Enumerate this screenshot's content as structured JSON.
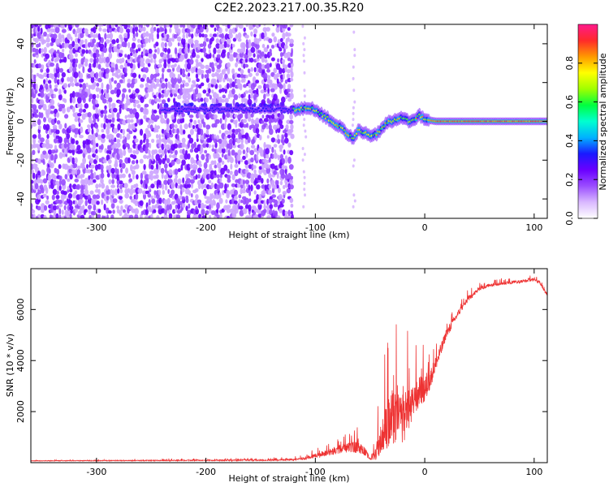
{
  "chart_data": [
    {
      "type": "heatmap",
      "title": "C2E2.2023.217.00.35.R20",
      "xlabel": "Height of straight line (km)",
      "ylabel": "Frequency (Hz)",
      "xlim": [
        -360,
        112
      ],
      "ylim": [
        -50,
        50
      ],
      "x_ticks": [
        -300,
        -200,
        -100,
        0,
        100
      ],
      "y_ticks": [
        -40,
        -20,
        0,
        20,
        40
      ],
      "colorbar": {
        "label": "Normalized spectral amplitude",
        "ticks": [
          0.0,
          0.2,
          0.4,
          0.6,
          0.8
        ],
        "tick_labels": [
          "0.0",
          "0.2",
          "0.4",
          "0.6",
          "0.8"
        ],
        "range": [
          0,
          1
        ],
        "colors": [
          "#ffffff",
          "#d9b8ff",
          "#9a4dff",
          "#6a00ff",
          "#1a1aff",
          "#00b2ff",
          "#00ffd0",
          "#00ff40",
          "#a0ff00",
          "#ffff00",
          "#ff9900",
          "#ff2a2a",
          "#ff1a8c"
        ]
      },
      "ridge": {
        "x": [
          -140,
          -120,
          -110,
          -100,
          -95,
          -90,
          -85,
          -80,
          -75,
          -70,
          -65,
          -60,
          -55,
          -50,
          -45,
          -40,
          -35,
          -30,
          -25,
          -20,
          -15,
          -10,
          -5,
          0,
          10,
          40,
          80,
          112
        ],
        "freq": [
          6,
          6,
          7,
          6,
          4,
          2,
          0,
          -2,
          -4,
          -7,
          -9,
          -4,
          -6,
          -8,
          -7,
          -4,
          -1,
          0,
          1,
          2,
          0,
          1,
          3,
          1,
          0,
          0,
          0,
          0
        ]
      }
    },
    {
      "type": "line",
      "xlabel": "Height of straight line (km)",
      "ylabel": "SNR (10 * v/v)",
      "xlim": [
        -360,
        112
      ],
      "ylim": [
        0,
        7600
      ],
      "x_ticks": [
        -300,
        -200,
        -100,
        0,
        100
      ],
      "y_ticks": [
        2000,
        4000,
        6000
      ],
      "color": "#ee3333",
      "envelope": {
        "x": [
          -360,
          -250,
          -150,
          -120,
          -110,
          -100,
          -90,
          -80,
          -70,
          -60,
          -55,
          -50,
          -45,
          -40,
          -35,
          -30,
          -25,
          -20,
          -15,
          -10,
          -5,
          0,
          5,
          10,
          15,
          20,
          30,
          40,
          50,
          60,
          70,
          80,
          90,
          100,
          105,
          110,
          112
        ],
        "baseline": [
          70,
          80,
          90,
          110,
          150,
          250,
          350,
          450,
          550,
          550,
          400,
          150,
          300,
          800,
          1200,
          1500,
          1400,
          1500,
          1800,
          2300,
          2600,
          2800,
          3200,
          3800,
          4400,
          5000,
          5800,
          6400,
          6800,
          6950,
          7000,
          7050,
          7100,
          7150,
          7050,
          6700,
          6550
        ],
        "spread": [
          60,
          90,
          120,
          150,
          250,
          400,
          600,
          800,
          1000,
          1200,
          900,
          200,
          1500,
          3000,
          4500,
          5500,
          5000,
          5200,
          4200,
          2800,
          3000,
          2800,
          2000,
          1500,
          1200,
          1000,
          600,
          500,
          400,
          350,
          300,
          300,
          300,
          300,
          300,
          400,
          300
        ]
      }
    }
  ]
}
